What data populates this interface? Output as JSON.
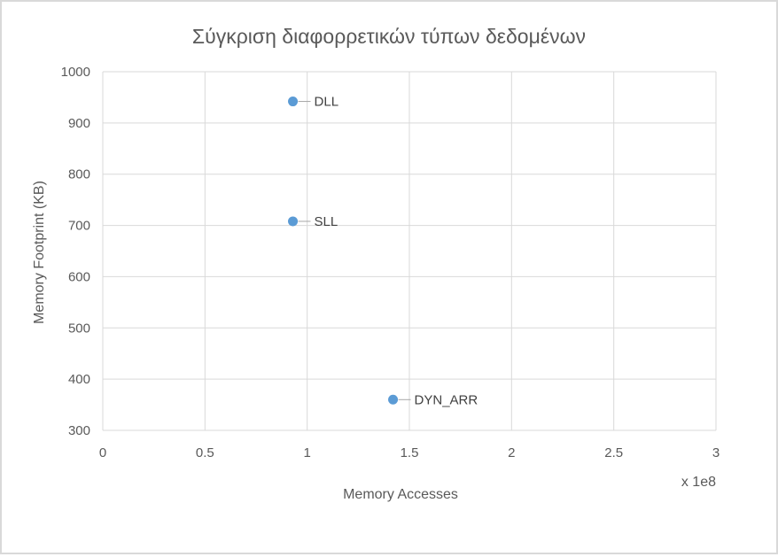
{
  "chart_data": {
    "type": "scatter",
    "title": "Σύγκριση διαφορρετικών τύπων δεδομένων",
    "xlabel": "Memory Accesses",
    "ylabel": "Memory Footprint (KB)",
    "x_multiplier_label": "x 1e8",
    "xlim": [
      0,
      3
    ],
    "ylim": [
      300,
      1000
    ],
    "x_ticks": [
      "0",
      "0.5",
      "1",
      "1.5",
      "2",
      "2.5",
      "3"
    ],
    "y_ticks": [
      "1000",
      "900",
      "800",
      "700",
      "600",
      "500",
      "400",
      "300"
    ],
    "grid": true,
    "legend": "none",
    "marker_color": "#5b9bd5",
    "points": [
      {
        "label": "DLL",
        "x": 0.93,
        "y": 942
      },
      {
        "label": "SLL",
        "x": 0.93,
        "y": 708
      },
      {
        "label": "DYN_ARR",
        "x": 1.42,
        "y": 360
      }
    ]
  }
}
